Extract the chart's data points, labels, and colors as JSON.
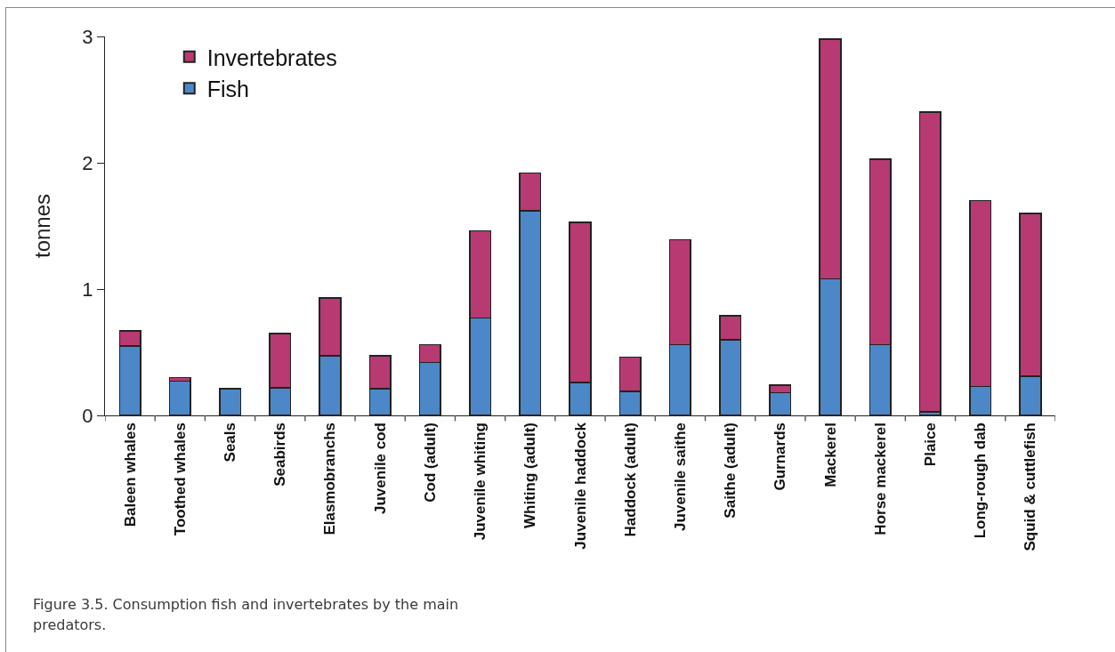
{
  "chart_data": {
    "type": "bar",
    "stacked": true,
    "ylabel": "tonnes",
    "categories": [
      "Baleen whales",
      "Toothed whales",
      "Seals",
      "Seabirds",
      "Elasmobranchs",
      "Juvenile cod",
      "Cod (adult)",
      "Juvenile whiting",
      "Whiting (adult)",
      "Juvenile haddock",
      "Haddock (adult)",
      "Juvenile saithe",
      "Saithe (adult)",
      "Gurnards",
      "Mackerel",
      "Horse mackerel",
      "Plaice",
      "Long-rough dab",
      "Squid & cuttlefish"
    ],
    "series": [
      {
        "name": "Fish",
        "color": "#4c88c8",
        "values": [
          0.55,
          0.27,
          0.21,
          0.22,
          0.47,
          0.21,
          0.42,
          0.77,
          1.62,
          0.26,
          0.19,
          0.56,
          0.6,
          0.18,
          1.08,
          0.56,
          0.03,
          0.23,
          0.31
        ]
      },
      {
        "name": "Invertebrates",
        "color": "#b83a72",
        "values": [
          0.12,
          0.03,
          0,
          0.43,
          0.46,
          0.26,
          0.14,
          0.69,
          0.3,
          1.27,
          0.27,
          0.83,
          0.19,
          0.06,
          1.9,
          1.47,
          2.37,
          1.47,
          1.29
        ]
      }
    ],
    "ylim": [
      0,
      3
    ],
    "yticks": [
      0,
      1,
      2,
      3
    ],
    "grid": false,
    "legend": "top left",
    "annotations": [
      "Figure 3.5. Consumption fish and invertebrates by the main predators."
    ]
  }
}
